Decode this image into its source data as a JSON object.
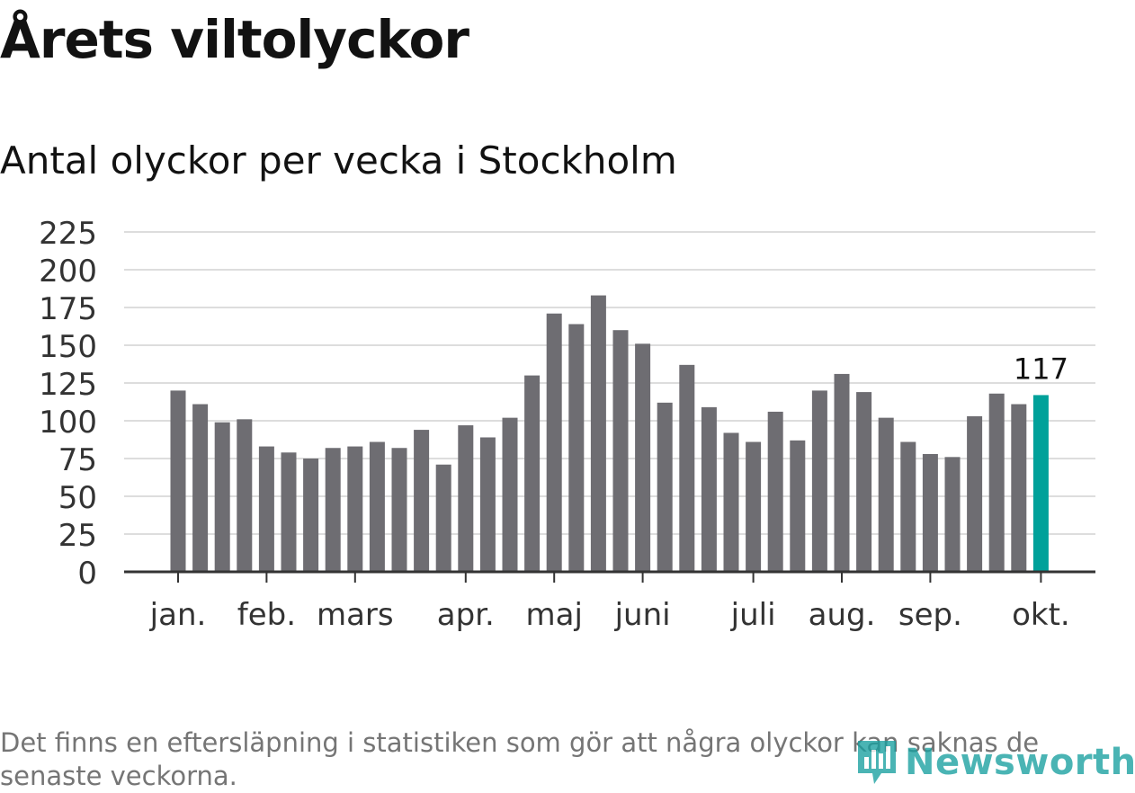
{
  "chart_data": {
    "type": "bar",
    "title": "Årets viltolyckor",
    "subtitle": "Antal olyckor per vecka i Stockholm",
    "xlabel": "",
    "ylabel": "",
    "ylim": [
      0,
      225
    ],
    "yticks": [
      0,
      25,
      50,
      75,
      100,
      125,
      150,
      175,
      200,
      225
    ],
    "grid": true,
    "values": [
      120,
      111,
      99,
      101,
      83,
      79,
      75,
      82,
      83,
      86,
      82,
      94,
      71,
      97,
      89,
      102,
      130,
      171,
      164,
      183,
      160,
      151,
      112,
      137,
      109,
      92,
      86,
      106,
      87,
      120,
      131,
      119,
      102,
      86,
      78,
      76,
      103,
      118,
      111,
      117
    ],
    "month_labels": [
      {
        "label": "jan.",
        "week": 1
      },
      {
        "label": "feb.",
        "week": 5
      },
      {
        "label": "mars",
        "week": 9
      },
      {
        "label": "apr.",
        "week": 14
      },
      {
        "label": "maj",
        "week": 18
      },
      {
        "label": "juni",
        "week": 22
      },
      {
        "label": "juli",
        "week": 27
      },
      {
        "label": "aug.",
        "week": 31
      },
      {
        "label": "sep.",
        "week": 35
      },
      {
        "label": "okt.",
        "week": 40
      }
    ],
    "highlight_index": 39,
    "highlight_label": "117",
    "colors": {
      "bar": "#6e6d72",
      "highlight": "#00a19a",
      "grid": "#dddddd",
      "axis": "#333333"
    }
  },
  "footnote": "Det finns en eftersläpning i statistiken som gör att några olyckor kan saknas de senaste veckorna.",
  "logo": {
    "text": "Newsworthy",
    "icon": "newsworthy-logo-icon",
    "color": "#18a0a0"
  }
}
